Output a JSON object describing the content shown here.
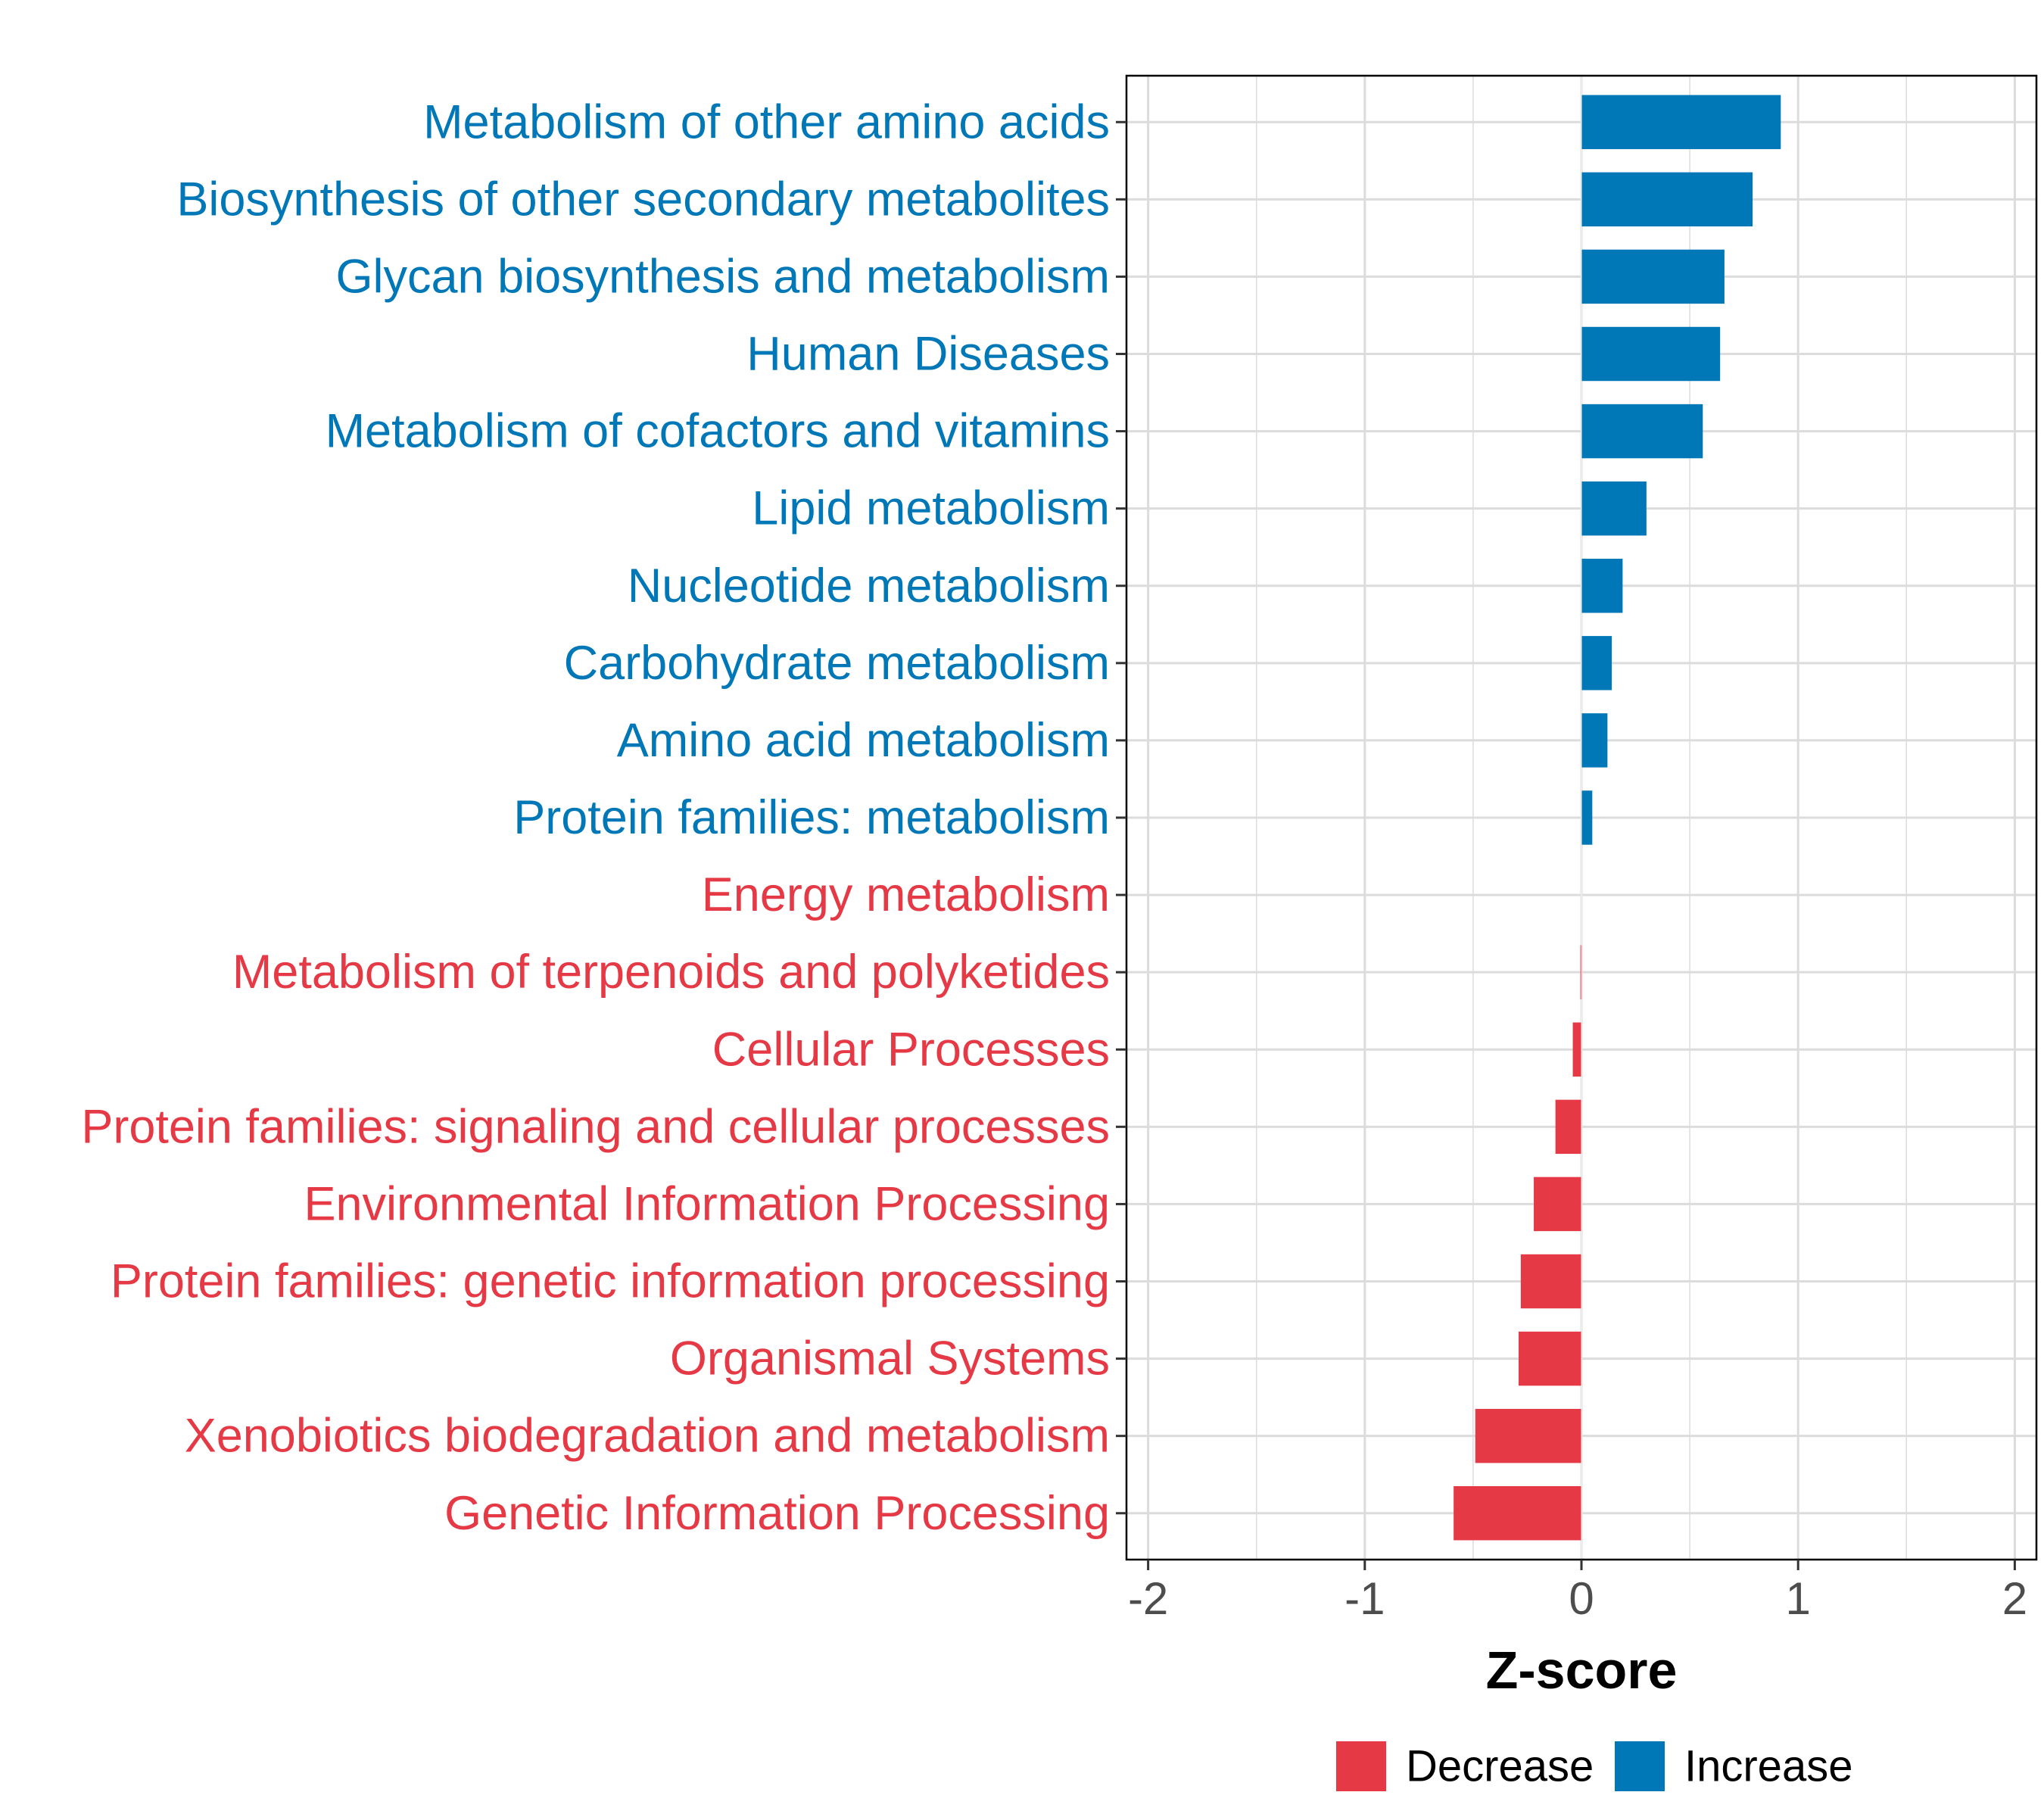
{
  "chart_data": {
    "type": "bar",
    "orientation": "horizontal",
    "title": "",
    "xlabel": "Z-score",
    "ylabel": "",
    "xlim": [
      -2.1,
      2.1
    ],
    "xticks": [
      -2,
      -1,
      0,
      1,
      2
    ],
    "xtick_labels": [
      "-2",
      "-1",
      "0",
      "1",
      "2"
    ],
    "grid": true,
    "legend_position": "bottom",
    "categories": [
      "Metabolism of other amino acids",
      "Biosynthesis of other secondary metabolites",
      "Glycan biosynthesis and metabolism",
      "Human Diseases",
      "Metabolism of cofactors and vitamins",
      "Lipid metabolism",
      "Nucleotide metabolism",
      "Carbohydrate metabolism",
      "Amino acid metabolism",
      "Protein families: metabolism",
      "Energy metabolism",
      "Metabolism of terpenoids and polyketides",
      "Cellular Processes",
      "Protein families: signaling and cellular processes",
      "Environmental Information Processing",
      "Protein families: genetic information processing",
      "Organismal Systems",
      "Xenobiotics biodegradation and metabolism",
      "Genetic Information Processing"
    ],
    "values": [
      0.92,
      0.79,
      0.66,
      0.64,
      0.56,
      0.3,
      0.19,
      0.14,
      0.12,
      0.05,
      0.0,
      -0.005,
      -0.04,
      -0.12,
      -0.22,
      -0.28,
      -0.29,
      -0.49,
      -0.59
    ],
    "groups": [
      "Increase",
      "Increase",
      "Increase",
      "Increase",
      "Increase",
      "Increase",
      "Increase",
      "Increase",
      "Increase",
      "Increase",
      "Decrease",
      "Decrease",
      "Decrease",
      "Decrease",
      "Decrease",
      "Decrease",
      "Decrease",
      "Decrease",
      "Decrease"
    ],
    "legend": [
      {
        "name": "Decrease",
        "color": "#e63946"
      },
      {
        "name": "Increase",
        "color": "#0077b6"
      }
    ]
  }
}
